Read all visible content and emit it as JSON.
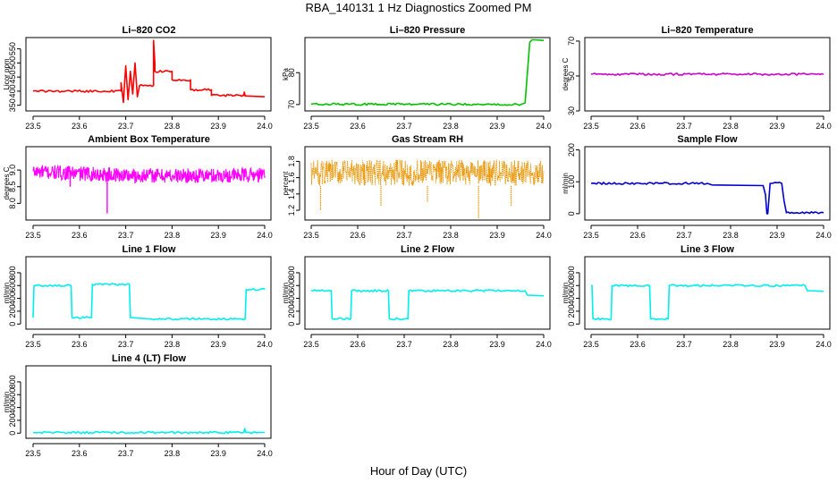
{
  "page_title": "RBA_140131  1 Hz Diagnostics Zoomed PM",
  "x_axis_label": "Hour of Day (UTC)",
  "chart_data": [
    {
      "type": "line",
      "title": "Li–820 CO2",
      "ylabel": "Licor ppm",
      "color": "#ff0000",
      "xlim": [
        23.5,
        24.0
      ],
      "ylim": [
        330,
        590
      ],
      "xticks": [
        23.5,
        23.6,
        23.7,
        23.8,
        23.9,
        24.0
      ],
      "xtick_labels": [
        "23.5",
        "23.6",
        "23.7",
        "23.8",
        "23.9",
        "24.0"
      ],
      "yticks": [
        350,
        400,
        450,
        500,
        550
      ],
      "ytick_labels": [
        "350",
        "400",
        "450",
        "500",
        "550"
      ],
      "series": [
        {
          "name": "CO2",
          "x": [
            23.5,
            23.69,
            23.69,
            23.695,
            23.7,
            23.705,
            23.71,
            23.715,
            23.72,
            23.725,
            23.73,
            23.73,
            23.76,
            23.76,
            23.763,
            23.763,
            23.8,
            23.8,
            23.84,
            23.84,
            23.885,
            23.885,
            23.955,
            23.956,
            23.958,
            23.96,
            24.0
          ],
          "y": [
            400,
            400,
            430,
            360,
            490,
            370,
            470,
            390,
            500,
            380,
            420,
            420,
            420,
            580,
            500,
            470,
            470,
            440,
            440,
            405,
            405,
            385,
            385,
            397,
            383,
            383,
            380
          ]
        }
      ]
    },
    {
      "type": "line",
      "title": "Li–820 Pressure",
      "ylabel": "kPa",
      "color": "#00c000",
      "xlim": [
        23.5,
        24.0
      ],
      "ylim": [
        68,
        91
      ],
      "xticks": [
        23.5,
        23.6,
        23.7,
        23.8,
        23.9,
        24.0
      ],
      "xtick_labels": [
        "23.5",
        "23.6",
        "23.7",
        "23.8",
        "23.9",
        "24.0"
      ],
      "yticks": [
        70,
        80
      ],
      "ytick_labels": [
        "70",
        "80"
      ],
      "series": [
        {
          "name": "Pressure",
          "x": [
            23.5,
            23.86,
            23.87,
            23.88,
            23.89,
            23.95,
            23.96,
            23.97,
            23.975,
            23.98,
            24.0
          ],
          "y": [
            70.1,
            70.1,
            69.9,
            70.2,
            70.0,
            70.0,
            70.5,
            89.5,
            90.3,
            90.3,
            90.1
          ]
        }
      ]
    },
    {
      "type": "line",
      "title": "Li–820 Temperature",
      "ylabel": "degrees C",
      "color": "#cc00cc",
      "xlim": [
        23.5,
        24.0
      ],
      "ylim": [
        30,
        72
      ],
      "xticks": [
        23.5,
        23.6,
        23.7,
        23.8,
        23.9,
        24.0
      ],
      "xtick_labels": [
        "23.5",
        "23.6",
        "23.7",
        "23.8",
        "23.9",
        "24.0"
      ],
      "yticks": [
        30,
        50,
        70
      ],
      "ytick_labels": [
        "30",
        "50",
        "70"
      ],
      "series": [
        {
          "name": "Temperature",
          "x": [
            23.5,
            24.0
          ],
          "y": [
            51,
            51
          ]
        }
      ]
    },
    {
      "type": "line",
      "title": "Ambient Box Temperature",
      "ylabel": "degrees C",
      "color": "#ff00ff",
      "xlim": [
        23.5,
        24.0
      ],
      "ylim": [
        7.5,
        9.7
      ],
      "xticks": [
        23.5,
        23.6,
        23.7,
        23.8,
        23.9,
        24.0
      ],
      "xtick_labels": [
        "23.5",
        "23.6",
        "23.7",
        "23.8",
        "23.9",
        "24.0"
      ],
      "yticks": [
        8.0,
        8.5,
        9.0
      ],
      "ytick_labels": [
        "8.0",
        "8.5",
        "9.0"
      ],
      "band_base": 8.95,
      "band_amp": 0.22,
      "band_drift": -0.15,
      "spikes": [
        {
          "x": 23.58,
          "y": 8.5
        },
        {
          "x": 23.66,
          "y": 7.7
        },
        {
          "x": 23.72,
          "y": 8.6
        },
        {
          "x": 23.84,
          "y": 8.7
        }
      ]
    },
    {
      "type": "line",
      "title": "Gas Stream RH",
      "ylabel": "percent",
      "color": "#e89400",
      "xlim": [
        23.5,
        24.0
      ],
      "ylim": [
        1.08,
        1.98
      ],
      "xticks": [
        23.5,
        23.6,
        23.7,
        23.8,
        23.9,
        24.0
      ],
      "xtick_labels": [
        "23.5",
        "23.6",
        "23.7",
        "23.8",
        "23.9",
        "24.0"
      ],
      "yticks": [
        1.2,
        1.4,
        1.6,
        1.8
      ],
      "ytick_labels": [
        "1.2",
        "1.4",
        "1.6",
        "1.8"
      ],
      "band_low": 1.5,
      "band_high": 1.82,
      "spikes": [
        {
          "x": 23.52,
          "y": 1.2
        },
        {
          "x": 23.65,
          "y": 1.25
        },
        {
          "x": 23.75,
          "y": 1.3
        },
        {
          "x": 23.86,
          "y": 1.1
        },
        {
          "x": 23.93,
          "y": 1.25
        }
      ]
    },
    {
      "type": "line",
      "title": "Sample Flow",
      "ylabel": "ml/min",
      "color": "#0000cc",
      "xlim": [
        23.5,
        24.0
      ],
      "ylim": [
        -20,
        210
      ],
      "xticks": [
        23.5,
        23.6,
        23.7,
        23.8,
        23.9,
        24.0
      ],
      "xtick_labels": [
        "23.5",
        "23.6",
        "23.7",
        "23.8",
        "23.9",
        "24.0"
      ],
      "yticks": [
        0,
        100,
        200
      ],
      "ytick_labels": [
        "0",
        "100",
        "200"
      ],
      "series": [
        {
          "name": "Sample Flow",
          "x": [
            23.5,
            23.75,
            23.76,
            23.87,
            23.875,
            23.878,
            23.88,
            23.885,
            23.89,
            23.91,
            23.915,
            23.92,
            24.0
          ],
          "y": [
            95,
            95,
            90,
            88,
            60,
            0,
            0,
            95,
            95,
            95,
            40,
            3,
            3
          ]
        }
      ]
    },
    {
      "type": "line",
      "title": "Line 1 Flow",
      "ylabel": "ml/min",
      "color": "#00eeee",
      "xlim": [
        23.5,
        24.0
      ],
      "ylim": [
        -80,
        1050
      ],
      "xticks": [
        23.5,
        23.6,
        23.7,
        23.8,
        23.9,
        24.0
      ],
      "xtick_labels": [
        "23.5",
        "23.6",
        "23.7",
        "23.8",
        "23.9",
        "24.0"
      ],
      "yticks": [
        0,
        200,
        400,
        600,
        800
      ],
      "ytick_labels": [
        "0",
        "200",
        "400",
        "600",
        "800"
      ],
      "series": [
        {
          "name": "Line 1",
          "x": [
            23.5,
            23.502,
            23.582,
            23.584,
            23.626,
            23.628,
            23.708,
            23.71,
            23.75,
            23.958,
            23.96,
            24.0
          ],
          "y": [
            100,
            600,
            600,
            100,
            100,
            620,
            620,
            100,
            80,
            80,
            540,
            540
          ]
        }
      ]
    },
    {
      "type": "line",
      "title": "Line 2 Flow",
      "ylabel": "ml/min",
      "color": "#00eeee",
      "xlim": [
        23.5,
        24.0
      ],
      "ylim": [
        -80,
        1050
      ],
      "xticks": [
        23.5,
        23.6,
        23.7,
        23.8,
        23.9,
        24.0
      ],
      "xtick_labels": [
        "23.5",
        "23.6",
        "23.7",
        "23.8",
        "23.9",
        "24.0"
      ],
      "yticks": [
        0,
        200,
        400,
        600,
        800
      ],
      "ytick_labels": [
        "0",
        "200",
        "400",
        "600",
        "800"
      ],
      "series": [
        {
          "name": "Line 2",
          "x": [
            23.5,
            23.543,
            23.545,
            23.585,
            23.587,
            23.666,
            23.668,
            23.708,
            23.71,
            23.96,
            23.965,
            24.0
          ],
          "y": [
            520,
            520,
            80,
            80,
            520,
            520,
            80,
            80,
            520,
            520,
            450,
            440
          ]
        }
      ]
    },
    {
      "type": "line",
      "title": "Line 3 Flow",
      "ylabel": "ml/min",
      "color": "#00eeee",
      "xlim": [
        23.5,
        24.0
      ],
      "ylim": [
        -80,
        1050
      ],
      "xticks": [
        23.5,
        23.6,
        23.7,
        23.8,
        23.9,
        24.0
      ],
      "xtick_labels": [
        "23.5",
        "23.6",
        "23.7",
        "23.8",
        "23.9",
        "24.0"
      ],
      "yticks": [
        0,
        200,
        400,
        600,
        800
      ],
      "ytick_labels": [
        "0",
        "200",
        "400",
        "600",
        "800"
      ],
      "series": [
        {
          "name": "Line 3",
          "x": [
            23.5,
            23.502,
            23.504,
            23.543,
            23.545,
            23.626,
            23.628,
            23.666,
            23.668,
            23.96,
            23.965,
            24.0
          ],
          "y": [
            600,
            600,
            80,
            80,
            600,
            600,
            80,
            80,
            600,
            600,
            520,
            510
          ]
        }
      ]
    },
    {
      "type": "line",
      "title": "Line 4 (LT) Flow",
      "ylabel": "ml/min",
      "color": "#00eeee",
      "xlim": [
        23.5,
        24.0
      ],
      "ylim": [
        -80,
        1050
      ],
      "xticks": [
        23.5,
        23.6,
        23.7,
        23.8,
        23.9,
        24.0
      ],
      "xtick_labels": [
        "23.5",
        "23.6",
        "23.7",
        "23.8",
        "23.9",
        "24.0"
      ],
      "yticks": [
        0,
        200,
        400,
        600,
        800
      ],
      "ytick_labels": [
        "0",
        "200",
        "400",
        "600",
        "800"
      ],
      "series": [
        {
          "name": "Line 4",
          "x": [
            23.5,
            23.955,
            23.957,
            23.959,
            24.0
          ],
          "y": [
            10,
            10,
            70,
            10,
            10
          ]
        }
      ]
    }
  ]
}
